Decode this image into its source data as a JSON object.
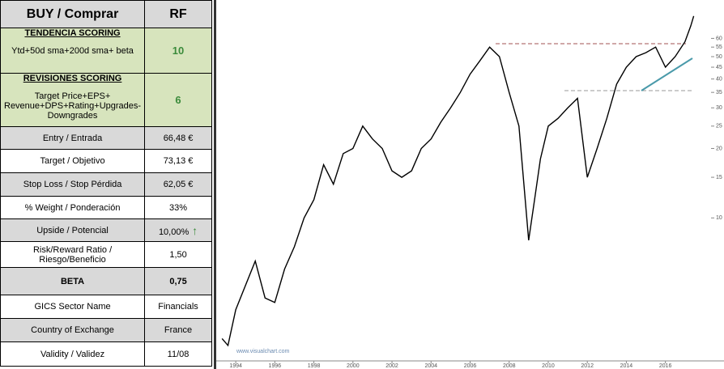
{
  "table": {
    "header": [
      "BUY / Comprar",
      "RF"
    ],
    "scoring": [
      {
        "title": "TENDENCIA SCORING",
        "description": "Ytd+50d sma+200d  sma+ beta",
        "value": "10"
      },
      {
        "title": "REVISIONES SCORING",
        "description": "Target Price+EPS+ Revenue+DPS+Rating+Upgrades-Downgrades",
        "value": "6"
      }
    ],
    "rows": [
      [
        "Entry / Entrada",
        "66,48 €"
      ],
      [
        "Target / Objetivo",
        "73,13 €"
      ],
      [
        "Stop Loss / Stop Pérdida",
        "62,05 €"
      ],
      [
        "% Weight / Ponderación",
        "33%"
      ],
      [
        "Upside / Potencial",
        "10,00%"
      ],
      [
        "Risk/Reward  Ratio / Riesgo/Beneficio",
        "1,50"
      ],
      [
        "BETA",
        "0,75"
      ],
      [
        "GICS Sector Name",
        "Financials"
      ],
      [
        "Country of Exchange",
        "France"
      ],
      [
        "Validity / Validez",
        "11/08"
      ]
    ]
  },
  "chart_data": {
    "type": "line",
    "source": "www.visualchart.com",
    "log_scale": true,
    "grid": false,
    "xlim": [
      1993,
      2019
    ],
    "xticks": [
      1994,
      1996,
      1998,
      2000,
      2002,
      2004,
      2006,
      2008,
      2010,
      2012,
      2014,
      2016
    ],
    "ylim": [
      2.4,
      88
    ],
    "yticks": [
      10,
      15,
      20,
      25,
      30,
      35,
      40,
      45,
      50,
      55,
      60
    ],
    "x": [
      1993.3,
      1993.6,
      1994,
      1995,
      1995.5,
      1996,
      1996.5,
      1997,
      1997.5,
      1998,
      1998.5,
      1999,
      1999.5,
      2000,
      2000.5,
      2001,
      2001.5,
      2002,
      2002.5,
      2003,
      2003.5,
      2004,
      2004.5,
      2005,
      2005.5,
      2006,
      2006.5,
      2007,
      2007.5,
      2008,
      2008.5,
      2009,
      2009.3,
      2009.6,
      2010,
      2010.5,
      2011,
      2011.5,
      2012,
      2012.5,
      2013,
      2013.5,
      2014,
      2014.5,
      2015,
      2015.5,
      2016,
      2016.5,
      2017,
      2017.3,
      2017.45
    ],
    "series": [
      {
        "color": "#000000",
        "values": [
          3,
          2.8,
          4,
          6.5,
          4.5,
          4.3,
          6,
          7.5,
          10,
          12,
          17,
          14,
          19,
          20,
          25,
          22,
          20,
          16,
          15,
          16,
          20,
          22,
          26,
          30,
          35,
          42,
          48,
          55,
          50,
          35,
          25,
          8,
          12,
          18,
          25,
          27,
          30,
          33,
          15,
          20,
          27,
          38,
          45,
          50,
          52,
          55,
          45,
          50,
          58,
          68,
          75
        ]
      }
    ]
  }
}
